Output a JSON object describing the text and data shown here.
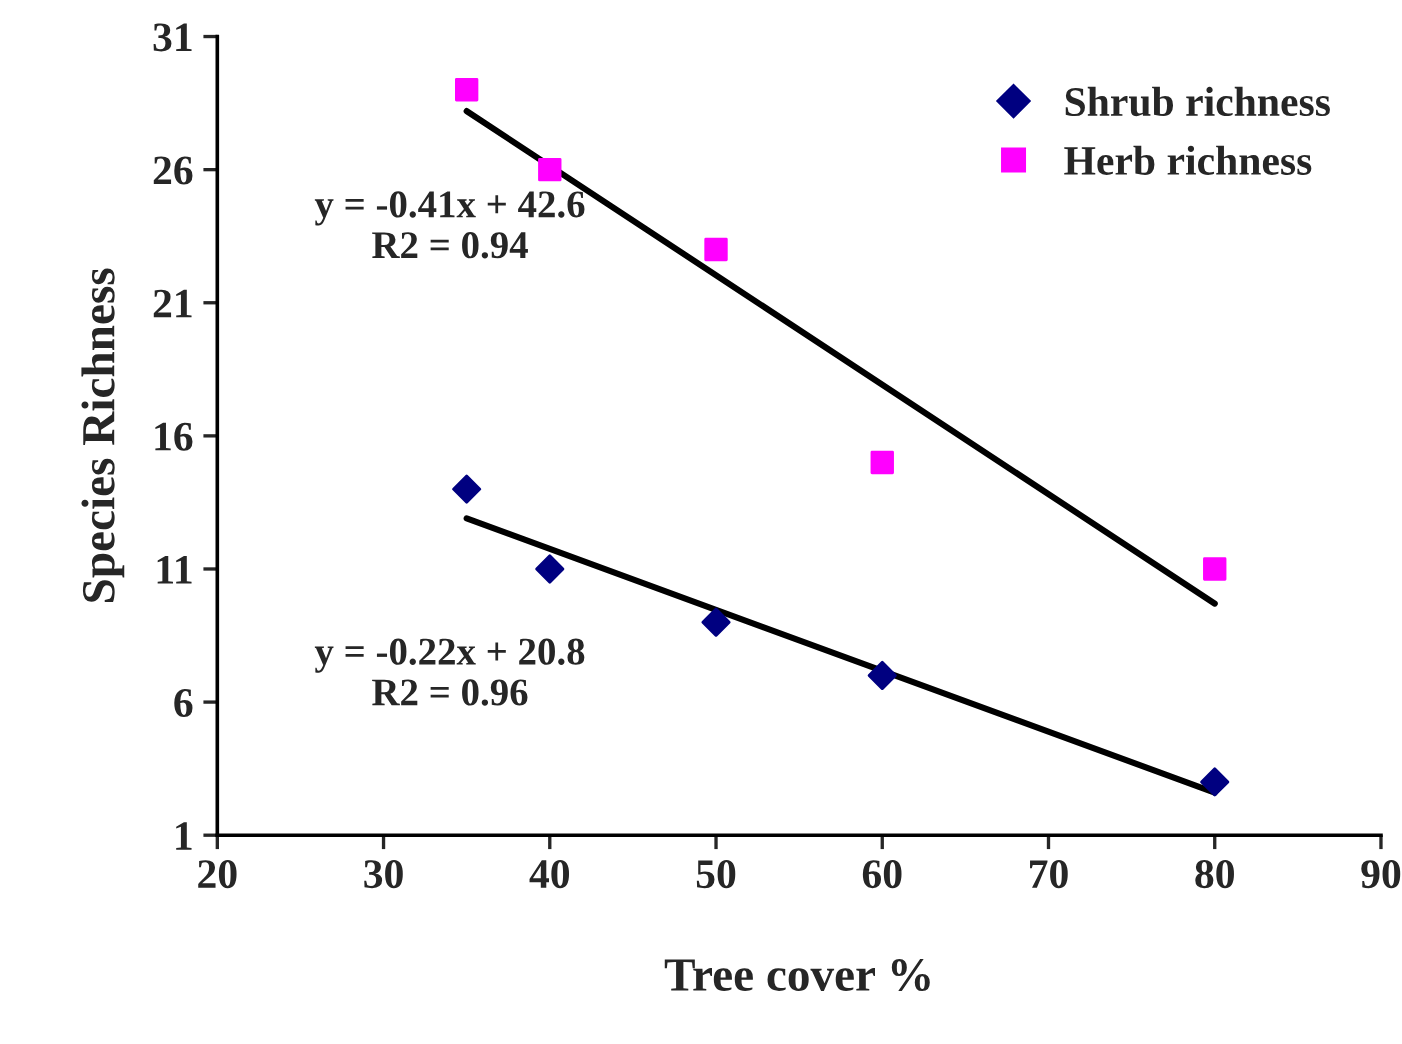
{
  "chart_data": {
    "type": "scatter",
    "xlabel": "Tree cover %",
    "ylabel": "Species Richness",
    "xlim": [
      20,
      90
    ],
    "xticks": [
      20,
      30,
      40,
      50,
      60,
      70,
      80,
      90
    ],
    "ylim": [
      1,
      31
    ],
    "yticks": [
      1,
      6,
      11,
      16,
      21,
      26,
      31
    ],
    "grid": false,
    "legend": "top right",
    "series": [
      {
        "name": "Shrub richness",
        "color": "#000080",
        "marker": "diamond",
        "x": [
          35,
          40,
          50,
          60,
          80
        ],
        "values": [
          14,
          11,
          9,
          7,
          3
        ]
      },
      {
        "name": "Herb richness",
        "color": "#ff00ff",
        "marker": "square",
        "x": [
          35,
          40,
          50,
          60,
          80
        ],
        "values": [
          29,
          26,
          23,
          15,
          11
        ]
      },
      {
        "type": "line",
        "color": "#000000",
        "marker": "none",
        "x": [
          35,
          80
        ],
        "values": [
          28.2,
          9.7
        ]
      },
      {
        "type": "line",
        "color": "#000000",
        "marker": "none",
        "x": [
          35,
          80
        ],
        "values": [
          12.9,
          2.6
        ]
      }
    ],
    "annotations": [
      "y = -0.41x + 42.6\nR2 = 0.94",
      "y = -0.22x + 20.8\nR2 = 0.96"
    ]
  }
}
